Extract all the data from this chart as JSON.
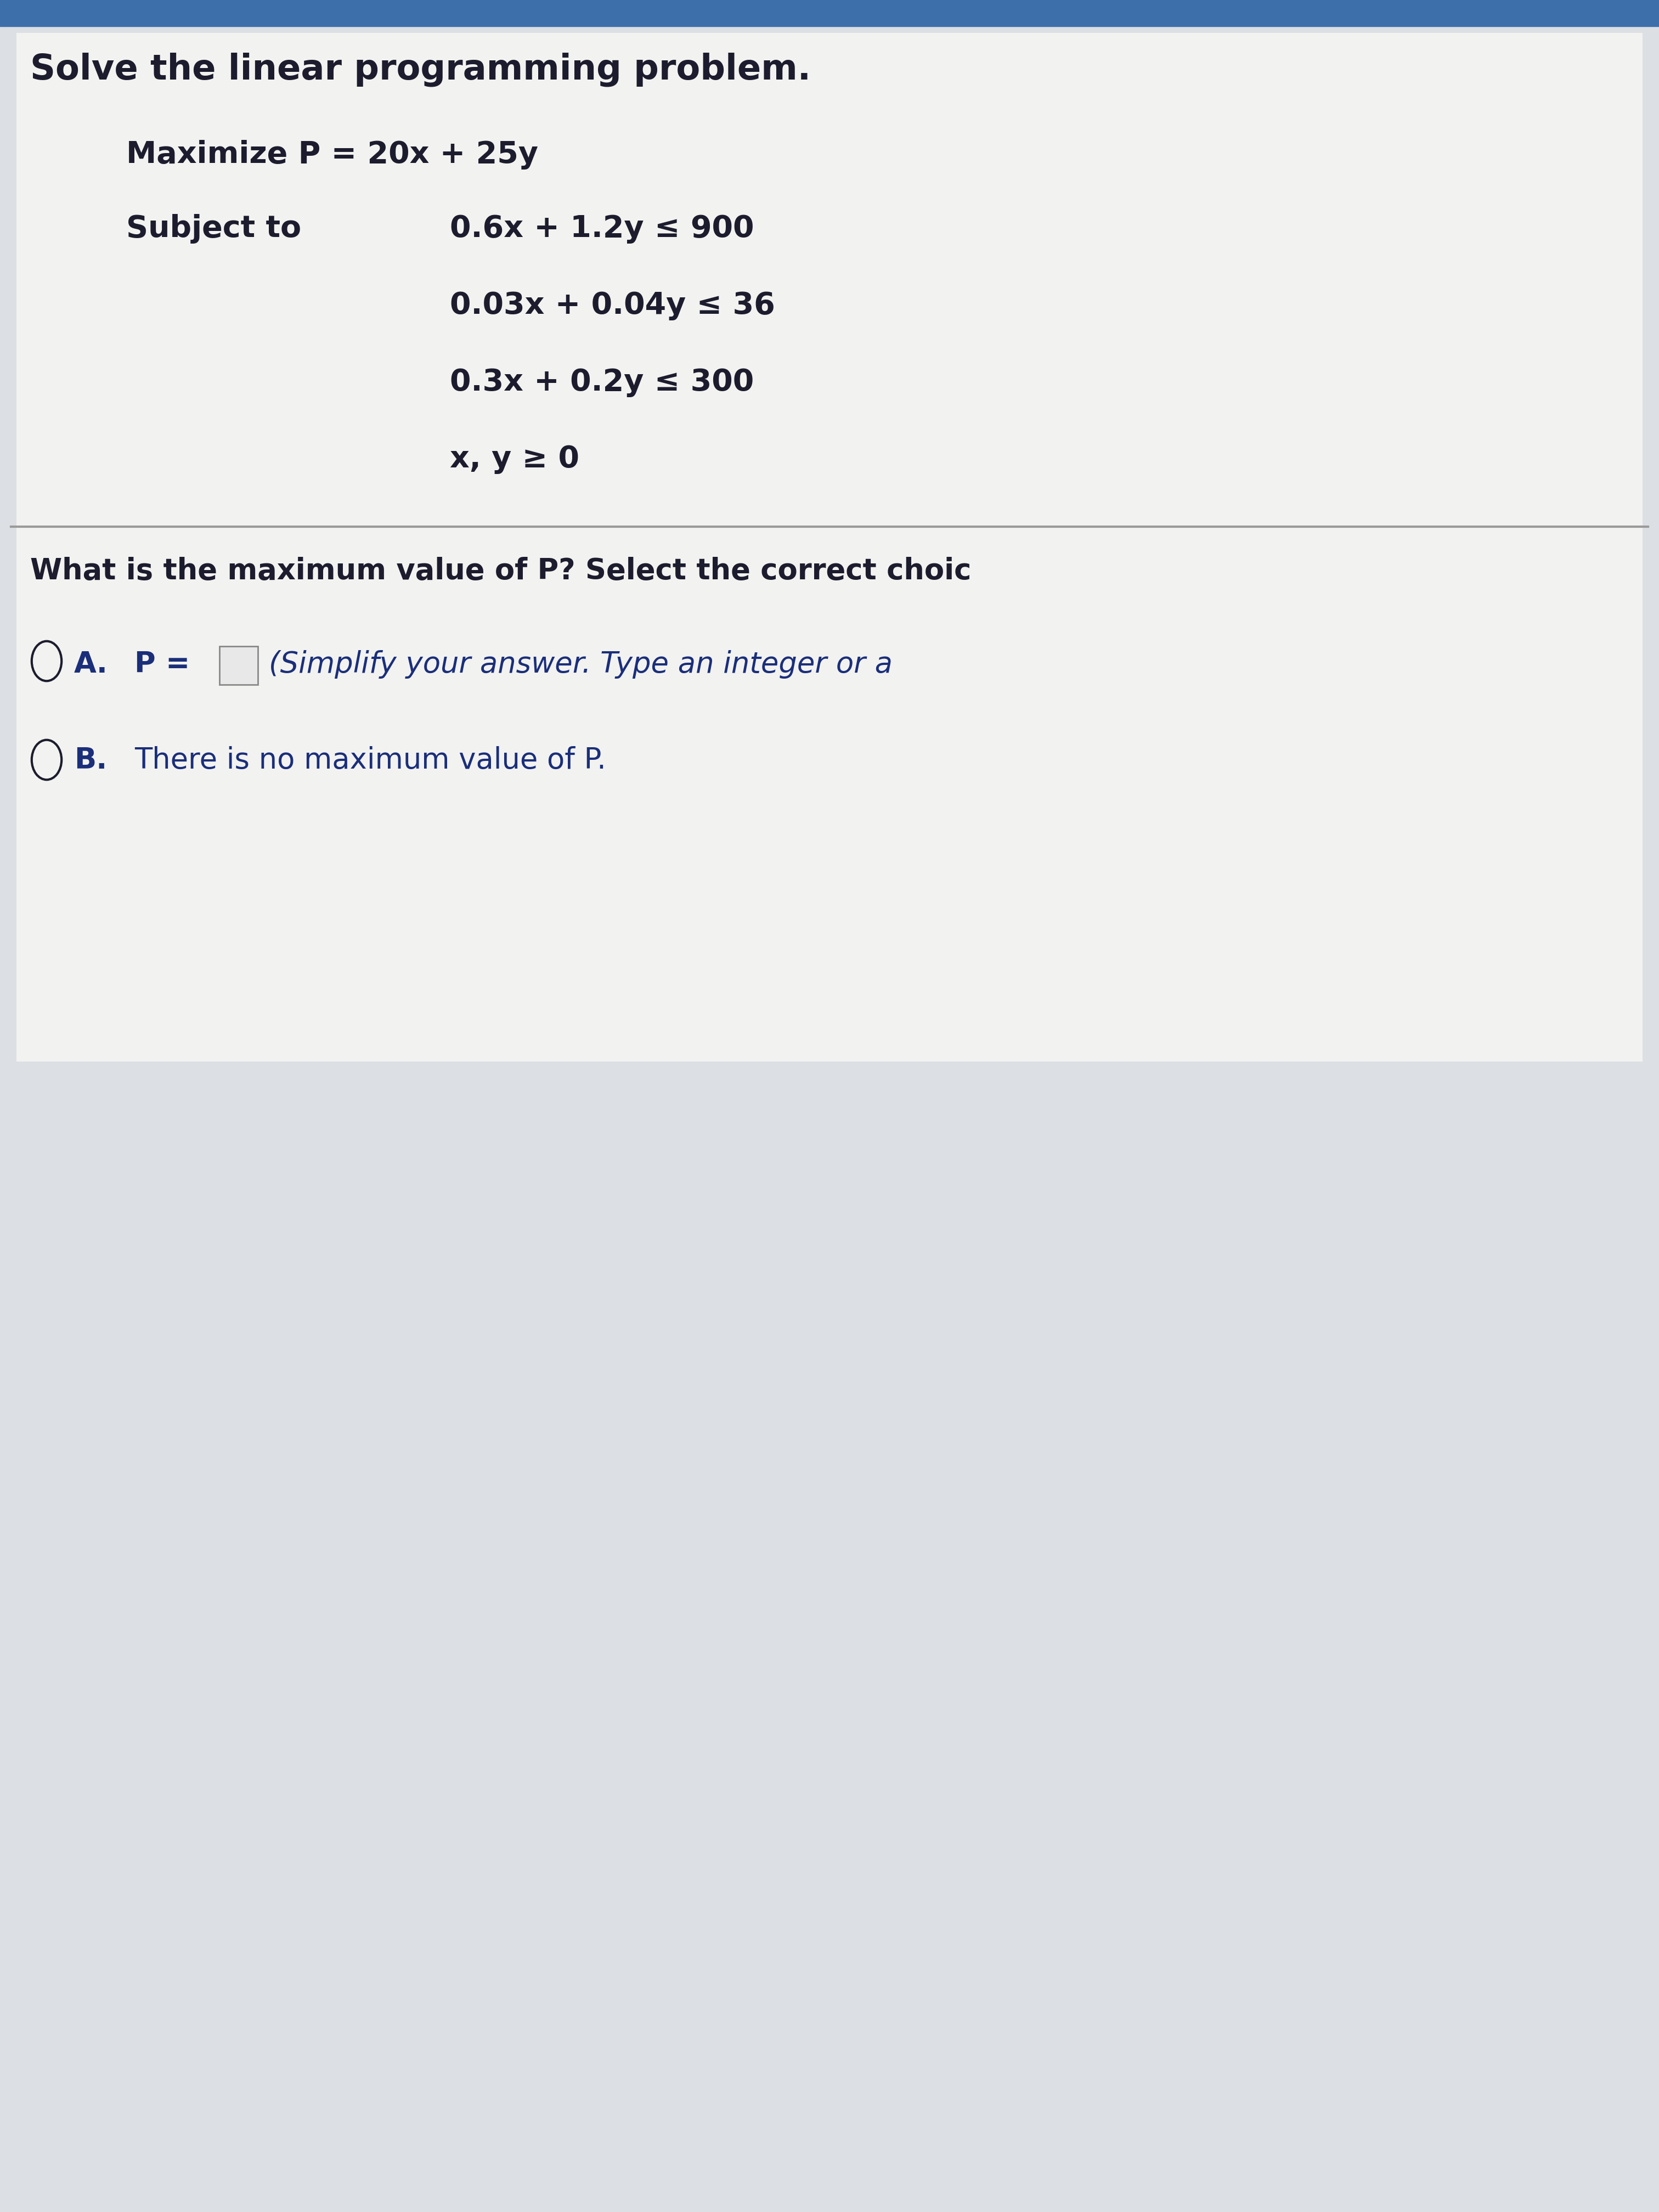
{
  "title": "Solve the linear programming problem.",
  "maximize_label": "Maximize P = 20x + 25y",
  "subject_to_label": "Subject to",
  "constraint1": "0.6x + 1.2y ≤ 900",
  "constraint2": "0.03x + 0.04y ≤ 36",
  "constraint3": "0.3x + 0.2y ≤ 300",
  "constraint4": "x, y ≥ 0",
  "question": "What is the maximum value of P? Select the correct choic",
  "option_a_label": "A.",
  "option_a_p": "P =",
  "option_a_rest": "(Simplify your answer. Type an integer or a",
  "option_b_label": "B.",
  "option_b_text": "There is no maximum value of P.",
  "bg_color": "#dcdfe3",
  "card_color": "#f2f2f0",
  "top_bar_color": "#3d6fab",
  "text_dark": "#1c1c2e",
  "text_blue": "#1a2e7a",
  "sep_color": "#9a9a9a",
  "title_fontsize": 46,
  "body_fontsize": 40,
  "question_fontsize": 38,
  "option_fontsize": 38
}
